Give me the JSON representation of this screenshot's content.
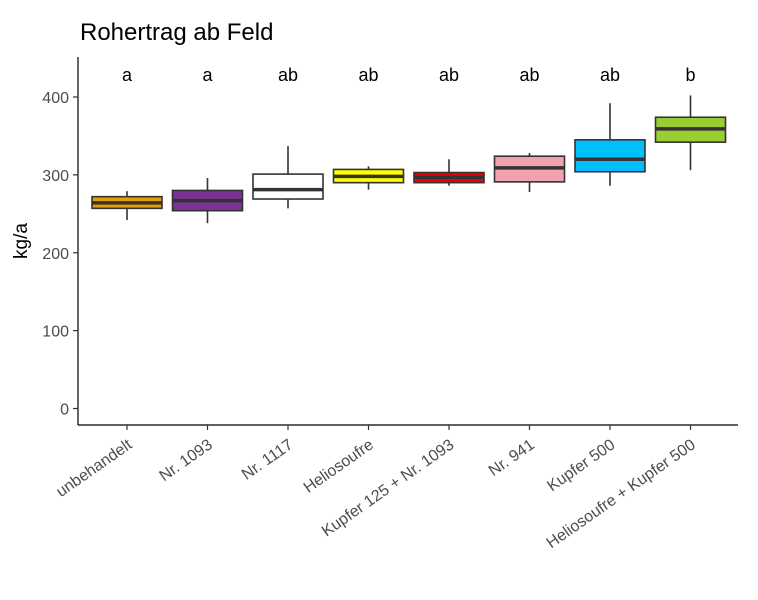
{
  "chart_data": {
    "type": "box",
    "title": "Rohertrag ab Feld",
    "xlabel": "",
    "ylabel": "kg/a",
    "ylim": [
      -20,
      450
    ],
    "yticks": [
      0,
      100,
      200,
      300,
      400
    ],
    "grid": false,
    "legend": "none",
    "categories": [
      "unbehandelt",
      "Nr. 1093",
      "Nr. 1117",
      "Heliosoufre",
      "Kupfer 125 + Nr. 1093",
      "Nr. 941",
      "Kupfer 500",
      "Heliosoufre + Kupfer 500"
    ],
    "boxes": [
      {
        "min": 242,
        "q1": 257,
        "median": 264,
        "q3": 272,
        "max": 279,
        "color": "#E69F00",
        "letter": "a"
      },
      {
        "min": 238,
        "q1": 254,
        "median": 267,
        "q3": 280,
        "max": 296,
        "color": "#7B3294",
        "letter": "a"
      },
      {
        "min": 257,
        "q1": 269,
        "median": 281,
        "q3": 301,
        "max": 337,
        "color": "#FFFFFF",
        "letter": "ab"
      },
      {
        "min": 281,
        "q1": 290,
        "median": 298,
        "q3": 307,
        "max": 311,
        "color": "#FFFF00",
        "letter": "ab"
      },
      {
        "min": 286,
        "q1": 290,
        "median": 297,
        "q3": 303,
        "max": 320,
        "color": "#EE0000",
        "letter": "ab"
      },
      {
        "min": 278,
        "q1": 291,
        "median": 309,
        "q3": 324,
        "max": 328,
        "color": "#F0A3AE",
        "letter": "ab"
      },
      {
        "min": 286,
        "q1": 304,
        "median": 320,
        "q3": 345,
        "max": 392,
        "color": "#00BFFF",
        "letter": "ab"
      },
      {
        "min": 306,
        "q1": 342,
        "median": 359,
        "q3": 374,
        "max": 402,
        "color": "#9ACD32",
        "letter": "b"
      }
    ]
  }
}
